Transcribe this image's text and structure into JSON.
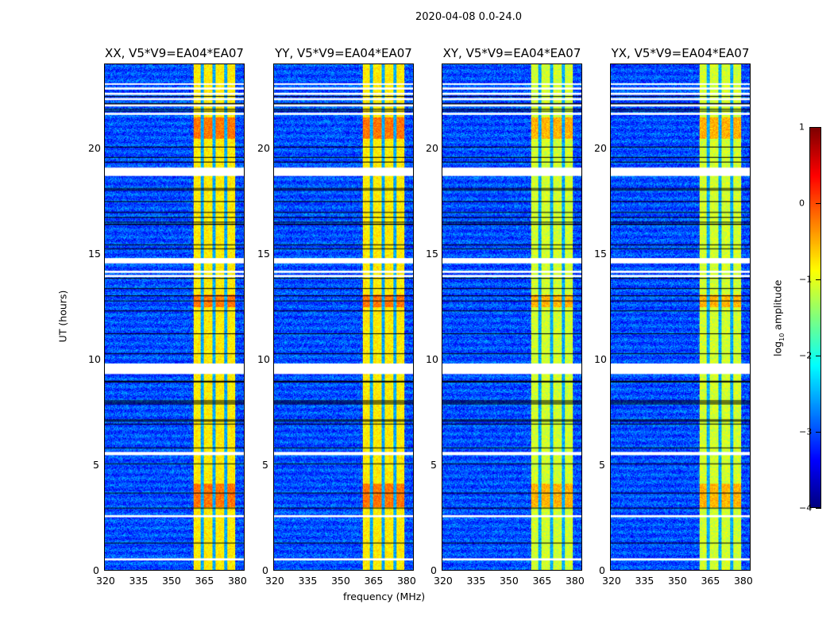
{
  "chart_data": {
    "type": "heatmap",
    "suptitle": "2020-04-08 0.0-24.0",
    "panels": [
      {
        "title": "XX, V5*V9=EA04*EA07"
      },
      {
        "title": "YY, V5*V9=EA04*EA07"
      },
      {
        "title": "XY, V5*V9=EA04*EA07"
      },
      {
        "title": "YX, V5*V9=EA04*EA07"
      }
    ],
    "xlabel": "frequency (MHz)",
    "ylabel": "UT (hours)",
    "xlim": [
      320,
      384
    ],
    "ylim": [
      0,
      24
    ],
    "xticks": [
      "320",
      "335",
      "350",
      "365",
      "380"
    ],
    "xtick_values": [
      320,
      335,
      350,
      365,
      380
    ],
    "yticks": [
      "0",
      "5",
      "10",
      "15",
      "20"
    ],
    "ytick_values": [
      0,
      5,
      10,
      15,
      20
    ],
    "background_log_amp": -3,
    "rfi_band_mhz": [
      360.5,
      380
    ],
    "rfi_band_log_amp": -0.8,
    "rfi_band_gaps_mhz": [
      364.5,
      370,
      375.5
    ],
    "flagged_hours": [
      [
        0.45,
        0.55
      ],
      [
        2.5,
        2.6
      ],
      [
        5.45,
        5.6
      ],
      [
        9.3,
        9.8
      ],
      [
        13.9,
        14.0
      ],
      [
        14.1,
        14.2
      ],
      [
        14.55,
        14.8
      ],
      [
        18.7,
        19.1
      ],
      [
        21.6,
        21.7
      ],
      [
        22.0,
        22.1
      ],
      [
        22.3,
        22.4
      ],
      [
        22.55,
        22.65
      ],
      [
        22.8,
        22.9
      ],
      [
        23.05,
        23.1
      ]
    ],
    "colorbar": {
      "label": "log10 amplitude",
      "min": -4,
      "max": 1,
      "ticks": [
        "1",
        "0",
        "−1",
        "−2",
        "−3",
        "−4"
      ],
      "tick_values": [
        1,
        0,
        -1,
        -2,
        -3,
        -4
      ],
      "colormap": "jet"
    }
  }
}
